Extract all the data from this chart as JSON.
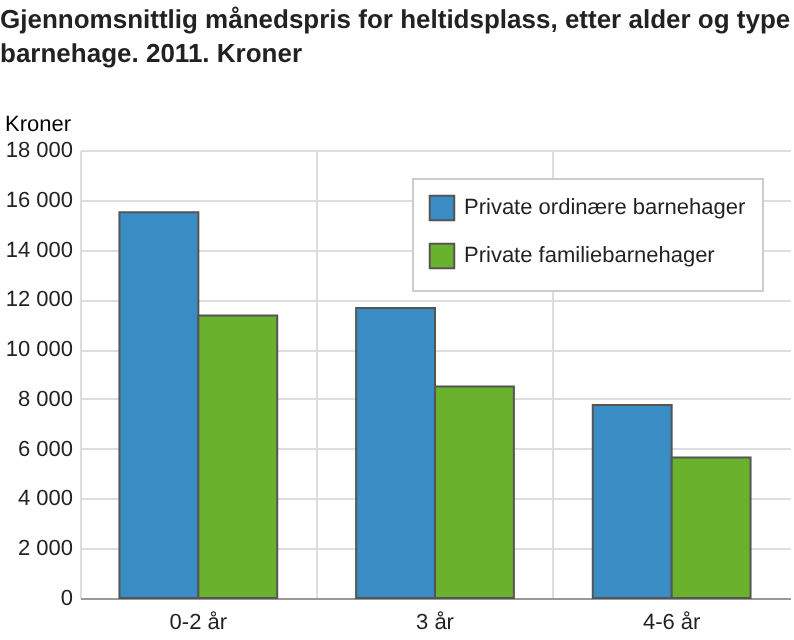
{
  "chart_data": {
    "type": "bar",
    "title": [
      "Gjennomsnittlig månedspris for heltidsplass, etter alder og type",
      "barnehage. 2011. Kroner"
    ],
    "ylabel": "Kroner",
    "categories": [
      "0-2 år",
      "3 år",
      "4-6 år"
    ],
    "series": [
      {
        "name": "Private ordinære barnehager",
        "color": "#3a8cc5",
        "values": [
          15500,
          11650,
          7750
        ]
      },
      {
        "name": "Private familiebarnehager",
        "color": "#6ab22e",
        "values": [
          11350,
          8500,
          5650
        ]
      }
    ],
    "ylim": [
      0,
      18000
    ],
    "yticks": [
      {
        "value": 0,
        "label": "0"
      },
      {
        "value": 2000,
        "label": "2 000"
      },
      {
        "value": 4000,
        "label": "4 000"
      },
      {
        "value": 6000,
        "label": "6 000"
      },
      {
        "value": 8000,
        "label": "8 000"
      },
      {
        "value": 10000,
        "label": "10 000"
      },
      {
        "value": 12000,
        "label": "12 000"
      },
      {
        "value": 14000,
        "label": "14 000"
      },
      {
        "value": 16000,
        "label": "16 000"
      },
      {
        "value": 18000,
        "label": "18 000"
      }
    ],
    "grid": true,
    "legend": "top right"
  }
}
